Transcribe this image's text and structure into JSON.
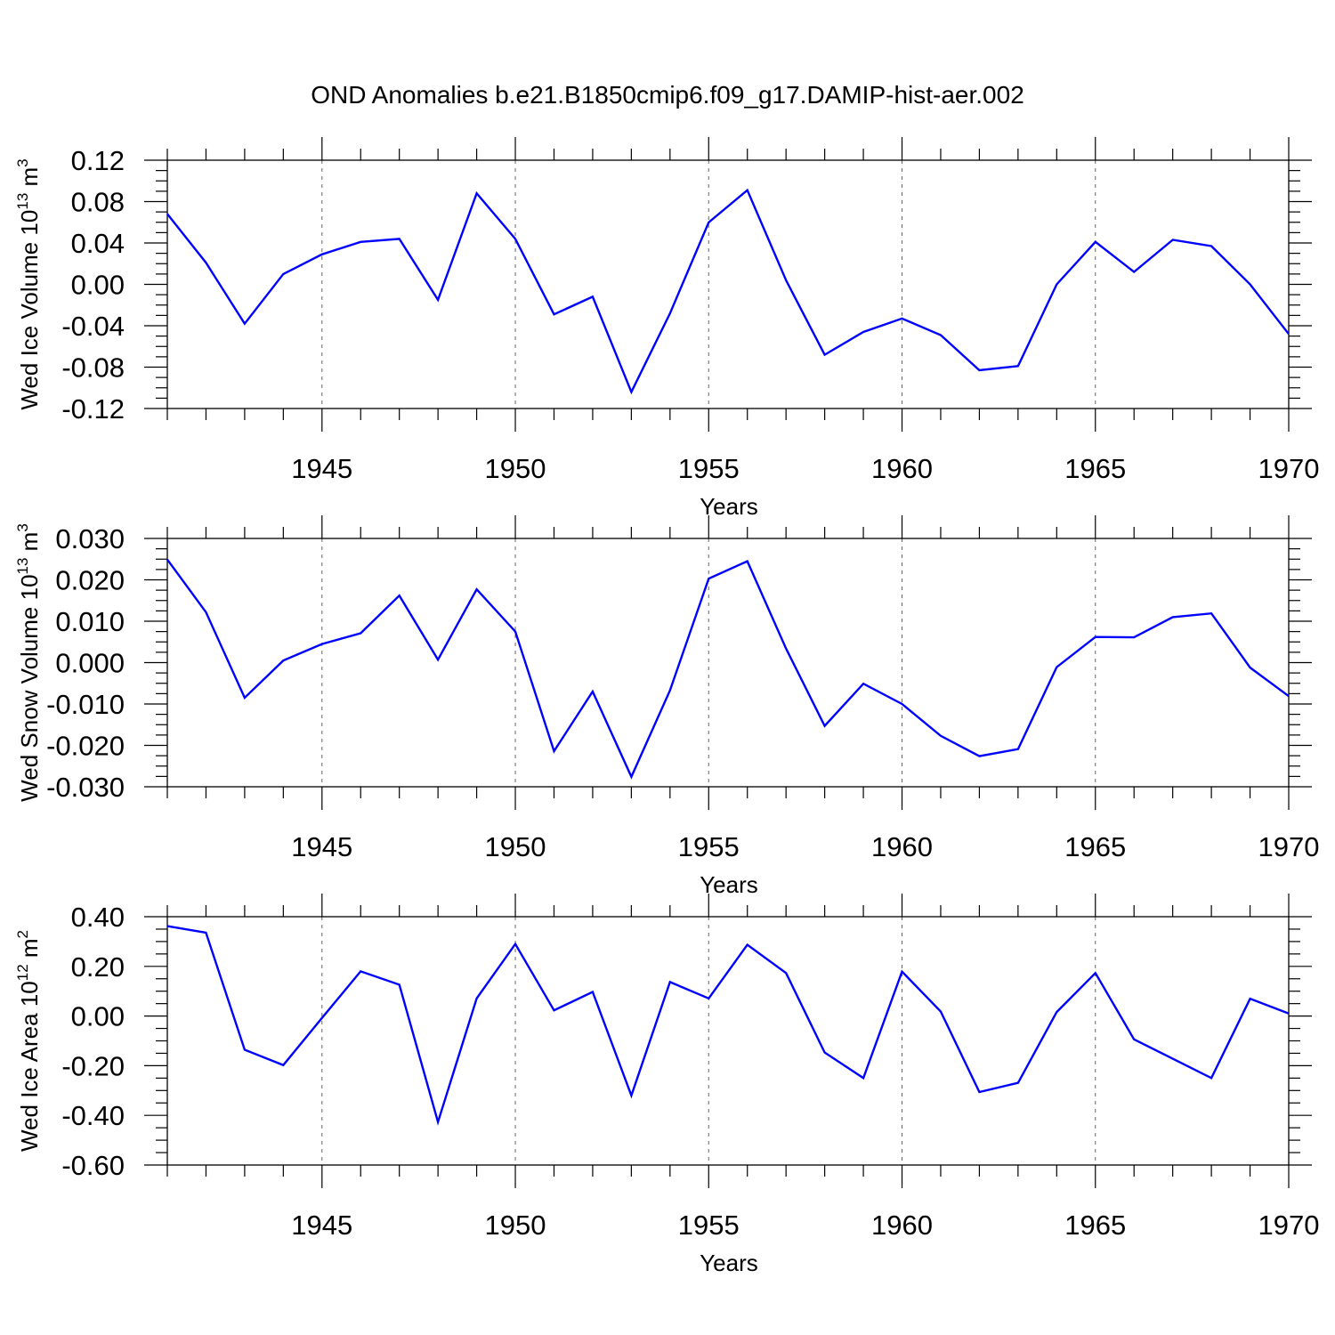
{
  "figure_title": "OND Anomalies b.e21.B1850cmip6.f09_g17.DAMIP-hist-aer.002",
  "chart_data": [
    {
      "type": "line",
      "ylabel": {
        "base": "Wed Ice Volume 10",
        "exp": "13",
        "unit": " m",
        "unit_exp": "3"
      },
      "xlabel": "Years",
      "xlim": [
        1941,
        1970
      ],
      "xticks": [
        1945,
        1950,
        1955,
        1960,
        1965,
        1970
      ],
      "ylim": [
        -0.12,
        0.12
      ],
      "yticks": [
        0.12,
        0.08,
        0.04,
        0.0,
        -0.04,
        -0.08,
        -0.12
      ],
      "ytick_labels": [
        "0.12",
        "0.08",
        "0.04",
        "0.00",
        "-0.04",
        "-0.08",
        "-0.12"
      ],
      "grid": "vertical dashed at major x ticks",
      "color": "#0000ff",
      "x": [
        1941,
        1942,
        1943,
        1944,
        1945,
        1946,
        1947,
        1948,
        1949,
        1950,
        1951,
        1952,
        1953,
        1954,
        1955,
        1956,
        1957,
        1958,
        1959,
        1960,
        1961,
        1962,
        1963,
        1964,
        1965,
        1966,
        1967,
        1968,
        1969,
        1970
      ],
      "values": [
        0.068,
        0.021,
        -0.038,
        0.01,
        0.029,
        0.041,
        0.044,
        -0.015,
        0.088,
        0.044,
        -0.029,
        -0.012,
        -0.104,
        -0.028,
        0.06,
        0.091,
        0.004,
        -0.068,
        -0.046,
        -0.033,
        -0.049,
        -0.083,
        -0.079,
        0.0,
        0.041,
        0.012,
        0.043,
        0.037,
        0.0,
        -0.048
      ]
    },
    {
      "type": "line",
      "ylabel": {
        "base": "Wed Snow Volume 10",
        "exp": "13",
        "unit": " m",
        "unit_exp": "3"
      },
      "xlabel": "Years",
      "xlim": [
        1941,
        1970
      ],
      "xticks": [
        1945,
        1950,
        1955,
        1960,
        1965,
        1970
      ],
      "ylim": [
        -0.03,
        0.03
      ],
      "yticks": [
        0.03,
        0.02,
        0.01,
        0.0,
        -0.01,
        -0.02,
        -0.03
      ],
      "ytick_labels": [
        "0.030",
        "0.020",
        "0.010",
        "0.000",
        "-0.010",
        "-0.020",
        "-0.030"
      ],
      "grid": "vertical dashed at major x ticks",
      "color": "#0000ff",
      "x": [
        1941,
        1942,
        1943,
        1944,
        1945,
        1946,
        1947,
        1948,
        1949,
        1950,
        1951,
        1952,
        1953,
        1954,
        1955,
        1956,
        1957,
        1958,
        1959,
        1960,
        1961,
        1962,
        1963,
        1964,
        1965,
        1966,
        1967,
        1968,
        1969,
        1970
      ],
      "values": [
        0.0249,
        0.0122,
        -0.0085,
        0.0005,
        0.0045,
        0.0071,
        0.0162,
        0.0007,
        0.0177,
        0.0075,
        -0.0214,
        -0.007,
        -0.0276,
        -0.0067,
        0.0203,
        0.0245,
        0.0034,
        -0.0153,
        -0.0051,
        -0.01,
        -0.0177,
        -0.0226,
        -0.0209,
        -0.0011,
        0.0062,
        0.0061,
        0.011,
        0.0119,
        -0.0012,
        -0.0081
      ]
    },
    {
      "type": "line",
      "ylabel": {
        "base": "Wed Ice Area 10",
        "exp": "12",
        "unit": " m",
        "unit_exp": "2"
      },
      "xlabel": "Years",
      "xlim": [
        1941,
        1970
      ],
      "xticks": [
        1945,
        1950,
        1955,
        1960,
        1965,
        1970
      ],
      "ylim": [
        -0.6,
        0.4
      ],
      "yticks": [
        0.4,
        0.2,
        0.0,
        -0.2,
        -0.4,
        -0.6
      ],
      "ytick_labels": [
        "0.40",
        "0.20",
        "0.00",
        "-0.20",
        "-0.40",
        "-0.60"
      ],
      "grid": "vertical dashed at major x ticks",
      "color": "#0000ff",
      "x": [
        1941,
        1942,
        1943,
        1944,
        1945,
        1946,
        1947,
        1948,
        1949,
        1950,
        1951,
        1952,
        1953,
        1954,
        1955,
        1956,
        1957,
        1958,
        1959,
        1960,
        1961,
        1962,
        1963,
        1964,
        1965,
        1966,
        1967,
        1968,
        1969,
        1970
      ],
      "values": [
        0.362,
        0.336,
        -0.136,
        -0.198,
        -0.008,
        0.18,
        0.126,
        -0.427,
        0.071,
        0.29,
        0.023,
        0.097,
        -0.32,
        0.137,
        0.071,
        0.287,
        0.173,
        -0.147,
        -0.25,
        0.179,
        0.018,
        -0.306,
        -0.269,
        0.016,
        0.173,
        -0.094,
        -0.172,
        -0.25,
        0.07,
        0.01
      ]
    }
  ]
}
